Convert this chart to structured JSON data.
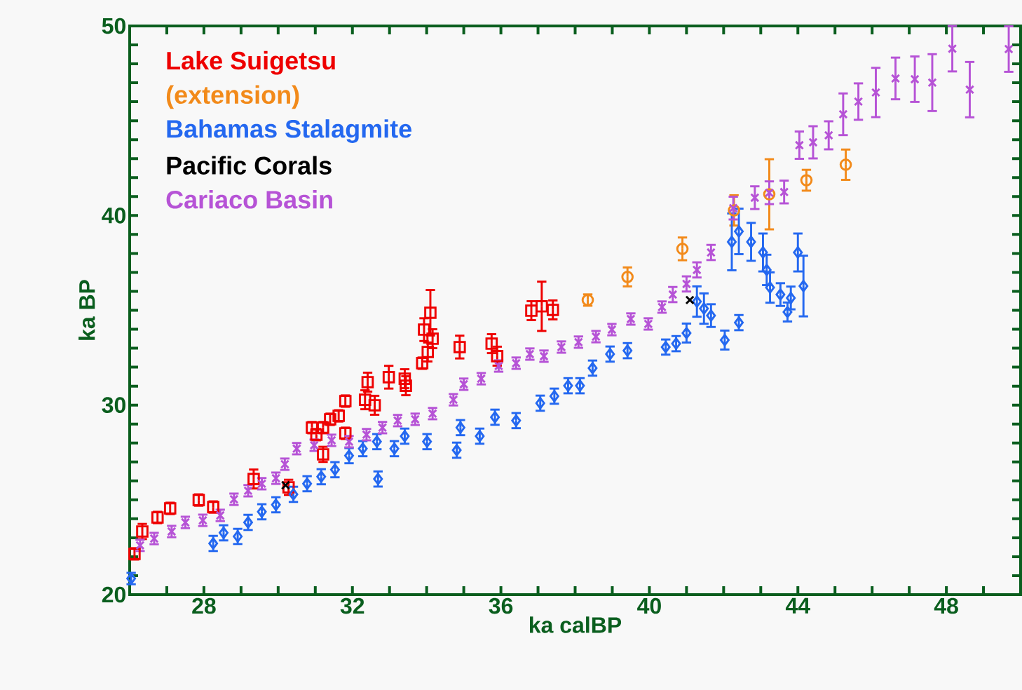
{
  "chart_data": {
    "type": "scatter",
    "xlabel": "ka calBP",
    "ylabel": "ka BP",
    "xlim": [
      26,
      50
    ],
    "ylim": [
      20,
      50
    ],
    "xticks": [
      {
        "value": 27,
        "label": null
      },
      28,
      {
        "value": 29,
        "label": null
      },
      {
        "value": 30,
        "label": null
      },
      {
        "value": 31,
        "label": null
      },
      32,
      {
        "value": 33,
        "label": null
      },
      {
        "value": 34,
        "label": null
      },
      {
        "value": 35,
        "label": null
      },
      36,
      {
        "value": 37,
        "label": null
      },
      {
        "value": 38,
        "label": null
      },
      {
        "value": 39,
        "label": null
      },
      40,
      {
        "value": 41,
        "label": null
      },
      {
        "value": 42,
        "label": null
      },
      {
        "value": 43,
        "label": null
      },
      44,
      {
        "value": 45,
        "label": null
      },
      {
        "value": 46,
        "label": null
      },
      {
        "value": 47,
        "label": null
      },
      48,
      {
        "value": 49,
        "label": null
      }
    ],
    "yticks": [
      20,
      {
        "value": 21,
        "label": null
      },
      {
        "value": 22,
        "label": null
      },
      {
        "value": 23,
        "label": null
      },
      {
        "value": 24,
        "label": null
      },
      {
        "value": 25,
        "label": null
      },
      {
        "value": 26,
        "label": null
      },
      {
        "value": 27,
        "label": null
      },
      {
        "value": 28,
        "label": null
      },
      {
        "value": 29,
        "label": null
      },
      30,
      {
        "value": 31,
        "label": null
      },
      {
        "value": 32,
        "label": null
      },
      {
        "value": 33,
        "label": null
      },
      {
        "value": 34,
        "label": null
      },
      {
        "value": 35,
        "label": null
      },
      {
        "value": 36,
        "label": null
      },
      {
        "value": 37,
        "label": null
      },
      {
        "value": 38,
        "label": null
      },
      {
        "value": 39,
        "label": null
      },
      40,
      {
        "value": 41,
        "label": null
      },
      {
        "value": 42,
        "label": null
      },
      {
        "value": 43,
        "label": null
      },
      {
        "value": 44,
        "label": null
      },
      {
        "value": 45,
        "label": null
      },
      {
        "value": 46,
        "label": null
      },
      {
        "value": 47,
        "label": null
      },
      {
        "value": 48,
        "label": null
      },
      {
        "value": 49,
        "label": null
      },
      50
    ],
    "legend": "top left",
    "grid": false,
    "series": [
      {
        "name": "Lake Suigetsu",
        "color": "#ee0000",
        "marker": "square",
        "x": [
          26.13,
          26.34,
          26.75,
          27.09,
          27.86,
          28.25,
          29.34,
          30.28,
          30.91,
          31.21,
          31.03,
          31.4,
          31.63,
          31.81,
          31.21,
          31.81,
          32.34,
          32.6,
          32.41,
          32.98,
          33.44,
          33.41,
          33.88,
          34.03,
          34.16,
          33.93,
          34.1,
          34.89,
          35.75,
          35.9,
          36.82,
          37.1,
          37.4
        ],
        "values": [
          22.15,
          23.33,
          24.07,
          24.55,
          24.99,
          24.62,
          26.1,
          25.66,
          28.81,
          28.81,
          28.44,
          29.25,
          29.43,
          28.51,
          27.4,
          30.21,
          30.28,
          29.99,
          31.21,
          31.47,
          31.02,
          31.39,
          32.21,
          32.8,
          33.5,
          33.98,
          34.87,
          33.06,
          33.24,
          32.58,
          34.98,
          35.21,
          35.02
        ],
        "errors": [
          0.3,
          0.4,
          0.3,
          0.3,
          0.3,
          0.3,
          0.5,
          0.4,
          0.3,
          0.3,
          0.3,
          0.3,
          0.3,
          0.3,
          0.4,
          0.3,
          0.5,
          0.5,
          0.5,
          0.6,
          0.5,
          0.5,
          0.3,
          0.5,
          0.5,
          0.6,
          1.2,
          0.6,
          0.5,
          0.5,
          0.5,
          1.3,
          0.5
        ]
      },
      {
        "name": "(extension)",
        "color": "#f28a1a",
        "marker": "circle",
        "x": [
          38.34,
          39.41,
          40.89,
          42.28,
          43.23,
          44.23,
          45.29
        ],
        "values": [
          35.54,
          36.76,
          38.24,
          40.27,
          41.12,
          41.86,
          42.68
        ],
        "errors": [
          0.3,
          0.5,
          0.6,
          0.8,
          1.85,
          0.55,
          0.8
        ]
      },
      {
        "name": "Bahamas Stalagmite",
        "color": "#2468f0",
        "marker": "diamond",
        "x": [
          26.04,
          28.25,
          28.53,
          28.91,
          29.19,
          29.56,
          29.94,
          30.41,
          30.78,
          31.16,
          31.53,
          31.91,
          32.28,
          32.66,
          32.69,
          33.13,
          33.41,
          34.01,
          34.81,
          34.91,
          35.43,
          35.84,
          36.41,
          37.06,
          37.44,
          37.81,
          38.13,
          38.47,
          38.94,
          39.41,
          40.44,
          40.72,
          41.0,
          41.28,
          41.47,
          41.66,
          42.03,
          42.41,
          42.22,
          42.41,
          42.74,
          43.06,
          43.16,
          43.25,
          43.53,
          43.72,
          43.81,
          44.0,
          44.15
        ],
        "values": [
          20.85,
          22.7,
          23.26,
          23.07,
          23.81,
          24.37,
          24.74,
          25.29,
          25.85,
          26.22,
          26.59,
          27.33,
          27.7,
          28.07,
          26.1,
          27.7,
          28.36,
          28.07,
          27.62,
          28.81,
          28.36,
          29.36,
          29.18,
          30.1,
          30.47,
          31.02,
          31.02,
          31.95,
          32.69,
          32.87,
          33.06,
          33.24,
          33.8,
          35.46,
          35.09,
          34.72,
          33.43,
          34.35,
          38.61,
          39.16,
          38.61,
          38.05,
          37.13,
          36.2,
          35.83,
          34.91,
          35.65,
          38.05,
          36.28
        ],
        "errors": [
          0.3,
          0.4,
          0.4,
          0.4,
          0.4,
          0.4,
          0.4,
          0.4,
          0.4,
          0.4,
          0.4,
          0.4,
          0.4,
          0.4,
          0.4,
          0.4,
          0.4,
          0.4,
          0.4,
          0.4,
          0.4,
          0.4,
          0.4,
          0.4,
          0.4,
          0.4,
          0.4,
          0.4,
          0.4,
          0.4,
          0.4,
          0.4,
          0.5,
          0.8,
          0.8,
          0.6,
          0.5,
          0.4,
          1.5,
          1.2,
          1.0,
          1.0,
          0.8,
          0.8,
          0.6,
          0.5,
          0.6,
          1.0,
          1.6
        ]
      },
      {
        "name": "Pacific Corals",
        "color": "#000000",
        "marker": "cross",
        "x": [
          30.2,
          41.09
        ],
        "values": [
          25.77,
          35.54
        ]
      },
      {
        "name": "Cariaco Basin",
        "color": "#b653d6",
        "marker": "cross",
        "x": [
          26.28,
          26.66,
          27.13,
          27.5,
          27.97,
          28.44,
          28.81,
          29.19,
          29.56,
          29.94,
          30.18,
          30.5,
          30.97,
          31.44,
          31.91,
          32.38,
          32.81,
          33.22,
          33.69,
          34.16,
          34.72,
          35.0,
          35.47,
          35.94,
          36.41,
          36.78,
          37.16,
          37.63,
          38.09,
          38.56,
          38.99,
          39.5,
          39.97,
          40.34,
          40.63,
          41.0,
          41.28,
          41.66,
          42.26,
          42.84,
          43.23,
          43.63,
          44.04,
          44.41,
          44.83,
          45.22,
          45.63,
          46.1,
          46.63,
          47.15,
          47.62,
          48.16,
          48.63,
          49.68
        ],
        "values": [
          22.6,
          22.96,
          23.33,
          23.81,
          23.92,
          24.18,
          25.03,
          25.48,
          25.85,
          26.14,
          26.88,
          27.7,
          27.88,
          28.14,
          28.07,
          28.44,
          28.81,
          29.18,
          29.25,
          29.55,
          30.28,
          31.1,
          31.39,
          32.06,
          32.21,
          32.69,
          32.58,
          33.06,
          33.32,
          33.61,
          33.98,
          34.54,
          34.28,
          35.17,
          35.83,
          36.39,
          37.13,
          38.05,
          40.39,
          40.94,
          41.2,
          41.24,
          43.71,
          43.86,
          44.23,
          45.34,
          46.01,
          46.49,
          47.23,
          47.19,
          47.01,
          48.8,
          46.64,
          48.78
        ],
        "errors": [
          0.3,
          0.3,
          0.3,
          0.3,
          0.3,
          0.3,
          0.3,
          0.3,
          0.3,
          0.3,
          0.3,
          0.3,
          0.3,
          0.3,
          0.3,
          0.3,
          0.3,
          0.3,
          0.3,
          0.3,
          0.3,
          0.3,
          0.3,
          0.3,
          0.3,
          0.3,
          0.3,
          0.3,
          0.3,
          0.3,
          0.3,
          0.3,
          0.3,
          0.3,
          0.4,
          0.4,
          0.4,
          0.4,
          0.6,
          0.6,
          0.6,
          0.6,
          0.72,
          0.85,
          0.74,
          1.1,
          0.96,
          1.3,
          1.1,
          1.2,
          1.5,
          1.2,
          1.46,
          1.2
        ]
      }
    ]
  }
}
